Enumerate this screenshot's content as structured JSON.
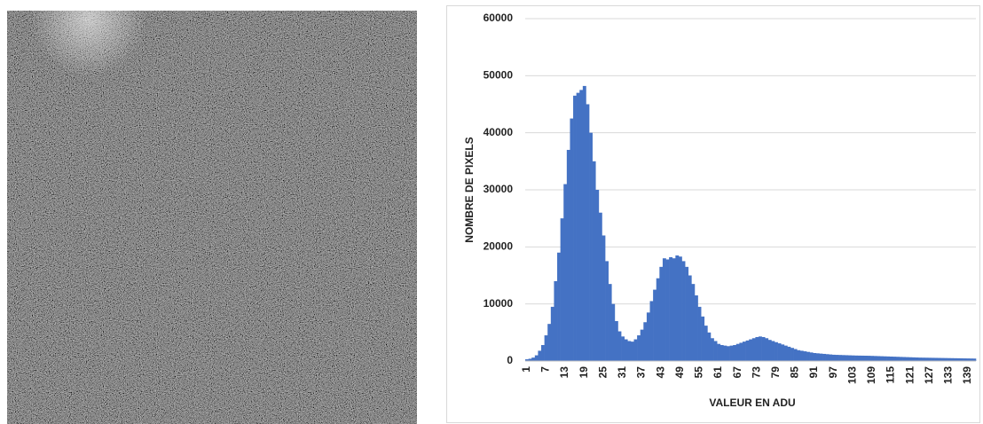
{
  "chart_data": {
    "type": "bar",
    "x_label": "VALEUR EN ADU",
    "y_label": "NOMBRE DE PIXELS",
    "color": "#4472c4",
    "grid": true,
    "ylim": [
      0,
      60000
    ],
    "yticks": [
      0,
      10000,
      20000,
      30000,
      40000,
      50000,
      60000
    ],
    "categories": [
      "1",
      null,
      null,
      null,
      null,
      null,
      "7",
      null,
      null,
      null,
      null,
      null,
      "13",
      null,
      null,
      null,
      null,
      null,
      "19",
      null,
      null,
      null,
      null,
      null,
      "25",
      null,
      null,
      null,
      null,
      null,
      "31",
      null,
      null,
      null,
      null,
      null,
      "37",
      null,
      null,
      null,
      null,
      null,
      "43",
      null,
      null,
      null,
      null,
      null,
      "49",
      null,
      null,
      null,
      null,
      null,
      "55",
      null,
      null,
      null,
      null,
      null,
      "61",
      null,
      null,
      null,
      null,
      null,
      "67",
      null,
      null,
      null,
      null,
      null,
      "73",
      null,
      null,
      null,
      null,
      null,
      "79",
      null,
      null,
      null,
      null,
      null,
      "85",
      null,
      null,
      null,
      null,
      null,
      "91",
      null,
      null,
      null,
      null,
      null,
      "97",
      null,
      null,
      null,
      null,
      null,
      "103",
      null,
      null,
      null,
      null,
      null,
      "109",
      null,
      null,
      null,
      null,
      null,
      "115",
      null,
      null,
      null,
      null,
      null,
      "121",
      null,
      null,
      null,
      null,
      null,
      "127",
      null,
      null,
      null,
      null,
      null,
      "133",
      null,
      null,
      null,
      null,
      null,
      "139",
      null,
      null
    ],
    "values": [
      300,
      400,
      600,
      1000,
      1800,
      2800,
      4500,
      6500,
      9500,
      14000,
      19000,
      25000,
      31000,
      37000,
      42500,
      46500,
      47000,
      47500,
      48200,
      45000,
      40000,
      35000,
      30000,
      26000,
      22000,
      17500,
      13500,
      10000,
      7000,
      5200,
      4300,
      3800,
      3500,
      3400,
      3800,
      4500,
      5500,
      6800,
      8500,
      10500,
      12500,
      14500,
      16500,
      18000,
      17800,
      18200,
      18000,
      18500,
      18300,
      17500,
      16500,
      15000,
      13500,
      11500,
      9500,
      7800,
      6200,
      5000,
      4000,
      3500,
      3000,
      2800,
      2700,
      2600,
      2700,
      2800,
      3000,
      3200,
      3400,
      3600,
      3800,
      4000,
      4200,
      4300,
      4200,
      4000,
      3700,
      3500,
      3300,
      3100,
      2900,
      2700,
      2500,
      2300,
      2100,
      1900,
      1800,
      1700,
      1600,
      1500,
      1400,
      1350,
      1300,
      1250,
      1200,
      1150,
      1100,
      1080,
      1060,
      1040,
      1020,
      1000,
      980,
      960,
      950,
      940,
      930,
      920,
      900,
      880,
      860,
      840,
      820,
      800,
      780,
      760,
      740,
      720,
      700,
      680,
      660,
      640,
      620,
      600,
      590,
      580,
      570,
      560,
      550,
      540,
      530,
      520,
      510,
      500,
      490,
      480,
      470,
      460,
      450,
      440,
      430
    ]
  }
}
